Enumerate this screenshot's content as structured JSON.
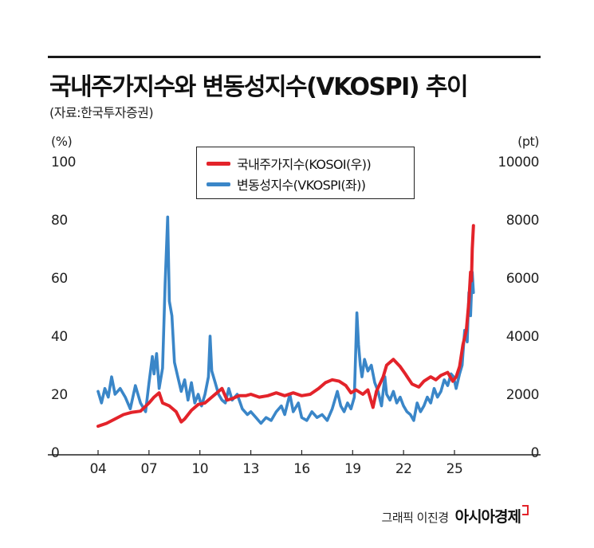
{
  "title": "국내주가지수와 변동성지수(VKOSPI) 추이",
  "source": "(자료:한국투자증권)",
  "credit": {
    "text": "그래픽 이진경",
    "brand": "아시아경제"
  },
  "chart_data": {
    "type": "line",
    "x_tick_labels": [
      "04",
      "07",
      "10",
      "13",
      "16",
      "19",
      "22",
      "25"
    ],
    "x_tick_values": [
      2004,
      2007,
      2010,
      2013,
      2016,
      2019,
      2022,
      2025
    ],
    "xlim": [
      2003.5,
      2026.3
    ],
    "left_axis": {
      "unit": "(%)",
      "ticks": [
        "100",
        "80",
        "60",
        "40",
        "20",
        "0"
      ],
      "lim": [
        0,
        100
      ]
    },
    "right_axis": {
      "unit": "(pt)",
      "ticks": [
        "10000",
        "8000",
        "6000",
        "4000",
        "2000",
        "0"
      ],
      "lim": [
        0,
        10000
      ]
    },
    "grid": false,
    "legend_position": "top-center",
    "series": [
      {
        "name": "국내주가지수(KOSOI(우))",
        "axis": "right",
        "color": "#e3232a",
        "points": [
          [
            2004.0,
            900
          ],
          [
            2004.5,
            1000
          ],
          [
            2005.0,
            1150
          ],
          [
            2005.5,
            1300
          ],
          [
            2006.0,
            1380
          ],
          [
            2006.5,
            1420
          ],
          [
            2007.0,
            1700
          ],
          [
            2007.3,
            1900
          ],
          [
            2007.6,
            2050
          ],
          [
            2007.8,
            1700
          ],
          [
            2008.2,
            1600
          ],
          [
            2008.6,
            1400
          ],
          [
            2008.9,
            1050
          ],
          [
            2009.1,
            1150
          ],
          [
            2009.5,
            1450
          ],
          [
            2009.9,
            1650
          ],
          [
            2010.3,
            1700
          ],
          [
            2010.7,
            1900
          ],
          [
            2011.0,
            2050
          ],
          [
            2011.3,
            2200
          ],
          [
            2011.6,
            1800
          ],
          [
            2011.9,
            1850
          ],
          [
            2012.3,
            1950
          ],
          [
            2012.7,
            1950
          ],
          [
            2013.0,
            2000
          ],
          [
            2013.5,
            1900
          ],
          [
            2014.0,
            1950
          ],
          [
            2014.5,
            2050
          ],
          [
            2015.0,
            1950
          ],
          [
            2015.5,
            2050
          ],
          [
            2016.0,
            1950
          ],
          [
            2016.5,
            2000
          ],
          [
            2017.0,
            2200
          ],
          [
            2017.4,
            2400
          ],
          [
            2017.8,
            2500
          ],
          [
            2018.2,
            2450
          ],
          [
            2018.6,
            2300
          ],
          [
            2018.9,
            2050
          ],
          [
            2019.2,
            2150
          ],
          [
            2019.6,
            2000
          ],
          [
            2019.9,
            2150
          ],
          [
            2020.2,
            1550
          ],
          [
            2020.4,
            2100
          ],
          [
            2020.8,
            2600
          ],
          [
            2021.0,
            3000
          ],
          [
            2021.4,
            3200
          ],
          [
            2021.8,
            2950
          ],
          [
            2022.1,
            2700
          ],
          [
            2022.5,
            2350
          ],
          [
            2022.9,
            2250
          ],
          [
            2023.2,
            2450
          ],
          [
            2023.6,
            2600
          ],
          [
            2023.9,
            2500
          ],
          [
            2024.2,
            2650
          ],
          [
            2024.6,
            2750
          ],
          [
            2024.9,
            2450
          ],
          [
            2025.1,
            2600
          ],
          [
            2025.3,
            2950
          ],
          [
            2025.5,
            3700
          ],
          [
            2025.7,
            4200
          ],
          [
            2025.85,
            5200
          ],
          [
            2025.95,
            6200
          ],
          [
            2026.0,
            5900
          ],
          [
            2026.05,
            7000
          ],
          [
            2026.12,
            7800
          ]
        ]
      },
      {
        "name": "변동성지수(VKOSPI(좌))",
        "axis": "left",
        "color": "#3a86c8",
        "points": [
          [
            2004.0,
            21
          ],
          [
            2004.2,
            17
          ],
          [
            2004.4,
            22
          ],
          [
            2004.6,
            19
          ],
          [
            2004.8,
            26
          ],
          [
            2005.0,
            20
          ],
          [
            2005.3,
            22
          ],
          [
            2005.6,
            19
          ],
          [
            2005.9,
            15
          ],
          [
            2006.2,
            23
          ],
          [
            2006.5,
            17
          ],
          [
            2006.8,
            14
          ],
          [
            2007.0,
            24
          ],
          [
            2007.2,
            33
          ],
          [
            2007.3,
            27
          ],
          [
            2007.45,
            34
          ],
          [
            2007.6,
            22
          ],
          [
            2007.8,
            29
          ],
          [
            2007.95,
            58
          ],
          [
            2008.1,
            81
          ],
          [
            2008.2,
            52
          ],
          [
            2008.35,
            47
          ],
          [
            2008.5,
            31
          ],
          [
            2008.7,
            26
          ],
          [
            2008.9,
            21
          ],
          [
            2009.1,
            25
          ],
          [
            2009.3,
            18
          ],
          [
            2009.5,
            24
          ],
          [
            2009.7,
            17
          ],
          [
            2009.9,
            20
          ],
          [
            2010.1,
            16
          ],
          [
            2010.3,
            20
          ],
          [
            2010.5,
            26
          ],
          [
            2010.6,
            40
          ],
          [
            2010.7,
            28
          ],
          [
            2010.9,
            24
          ],
          [
            2011.1,
            20
          ],
          [
            2011.3,
            18
          ],
          [
            2011.5,
            17
          ],
          [
            2011.7,
            22
          ],
          [
            2011.9,
            18
          ],
          [
            2012.2,
            20
          ],
          [
            2012.5,
            15
          ],
          [
            2012.8,
            13
          ],
          [
            2013.0,
            14
          ],
          [
            2013.3,
            12
          ],
          [
            2013.6,
            10
          ],
          [
            2013.9,
            12
          ],
          [
            2014.2,
            11
          ],
          [
            2014.5,
            14
          ],
          [
            2014.8,
            16
          ],
          [
            2015.0,
            13
          ],
          [
            2015.3,
            20
          ],
          [
            2015.5,
            14
          ],
          [
            2015.8,
            17
          ],
          [
            2016.0,
            12
          ],
          [
            2016.3,
            11
          ],
          [
            2016.6,
            14
          ],
          [
            2016.9,
            12
          ],
          [
            2017.2,
            13
          ],
          [
            2017.5,
            11
          ],
          [
            2017.8,
            15
          ],
          [
            2018.1,
            21
          ],
          [
            2018.3,
            16
          ],
          [
            2018.5,
            14
          ],
          [
            2018.7,
            17
          ],
          [
            2018.9,
            15
          ],
          [
            2019.1,
            19
          ],
          [
            2019.25,
            48
          ],
          [
            2019.35,
            37
          ],
          [
            2019.45,
            30
          ],
          [
            2019.55,
            26
          ],
          [
            2019.7,
            32
          ],
          [
            2019.9,
            28
          ],
          [
            2020.1,
            30
          ],
          [
            2020.3,
            24
          ],
          [
            2020.5,
            21
          ],
          [
            2020.7,
            16
          ],
          [
            2020.9,
            26
          ],
          [
            2021.0,
            20
          ],
          [
            2021.2,
            18
          ],
          [
            2021.4,
            21
          ],
          [
            2021.6,
            17
          ],
          [
            2021.8,
            19
          ],
          [
            2022.0,
            16
          ],
          [
            2022.2,
            14
          ],
          [
            2022.4,
            13
          ],
          [
            2022.6,
            11
          ],
          [
            2022.8,
            17
          ],
          [
            2023.0,
            14
          ],
          [
            2023.2,
            16
          ],
          [
            2023.4,
            19
          ],
          [
            2023.6,
            17
          ],
          [
            2023.8,
            22
          ],
          [
            2024.0,
            19
          ],
          [
            2024.2,
            21
          ],
          [
            2024.4,
            25
          ],
          [
            2024.6,
            23
          ],
          [
            2024.8,
            27
          ],
          [
            2024.95,
            26
          ],
          [
            2025.1,
            22
          ],
          [
            2025.3,
            27
          ],
          [
            2025.45,
            30
          ],
          [
            2025.6,
            42
          ],
          [
            2025.75,
            38
          ],
          [
            2025.85,
            55
          ],
          [
            2025.95,
            47
          ],
          [
            2026.05,
            62
          ],
          [
            2026.12,
            55
          ]
        ]
      }
    ]
  }
}
